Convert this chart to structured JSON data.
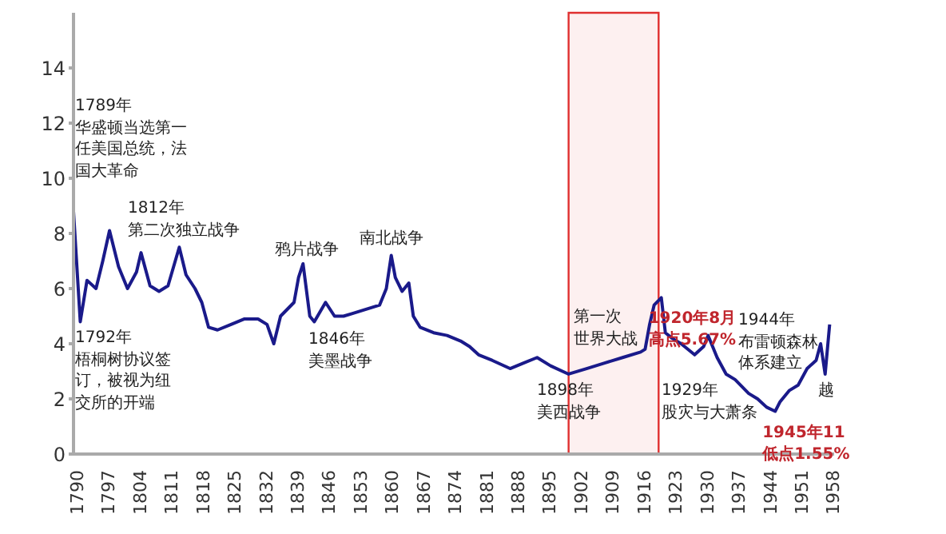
{
  "chart_data": {
    "type": "line",
    "x": [
      1790,
      1791.5,
      1793,
      1795,
      1796.5,
      1798,
      1800,
      1802,
      1804,
      1805,
      1807,
      1809,
      1811,
      1813.5,
      1815,
      1817,
      1818.5,
      1820,
      1822,
      1825,
      1828,
      1831,
      1833,
      1834.5,
      1836,
      1839,
      1840,
      1841,
      1842.5,
      1843.5,
      1846,
      1848,
      1850,
      1852,
      1854,
      1856,
      1858,
      1859.5,
      1860.6,
      1861.5,
      1863,
      1864.5,
      1865.5,
      1867,
      1870,
      1873,
      1876,
      1878,
      1880,
      1883,
      1887,
      1890,
      1893,
      1896,
      1900,
      1904,
      1908,
      1912,
      1916,
      1917,
      1918,
      1919,
      1920.6,
      1921.5,
      1923,
      1925,
      1928,
      1930,
      1931,
      1933,
      1935,
      1937,
      1940,
      1942,
      1944,
      1945.9,
      1947,
      1949,
      1951,
      1953,
      1955,
      1956,
      1957,
      1958
    ],
    "series": [
      {
        "color": "#1a1a8a",
        "values": [
          8.8,
          4.8,
          6.3,
          6.0,
          7.0,
          8.1,
          6.8,
          6.0,
          6.6,
          7.3,
          6.1,
          5.9,
          6.1,
          7.5,
          6.5,
          6.0,
          5.5,
          4.6,
          4.5,
          4.7,
          4.9,
          4.9,
          4.7,
          4.0,
          5.0,
          5.5,
          6.4,
          6.9,
          5.0,
          4.8,
          5.5,
          5.0,
          5.0,
          5.1,
          5.2,
          5.3,
          5.4,
          6.0,
          7.2,
          6.4,
          5.9,
          6.2,
          5.0,
          4.6,
          4.4,
          4.3,
          4.1,
          3.9,
          3.6,
          3.4,
          3.1,
          3.3,
          3.5,
          3.2,
          2.9,
          3.1,
          3.3,
          3.5,
          3.7,
          3.8,
          4.7,
          5.4,
          5.67,
          4.4,
          4.2,
          4.0,
          3.6,
          3.9,
          4.3,
          3.5,
          2.9,
          2.7,
          2.2,
          2.0,
          1.7,
          1.55,
          1.9,
          2.3,
          2.5,
          3.1,
          3.4,
          4.0,
          2.9,
          4.7
        ]
      }
    ],
    "xlim": [
      1790,
      1959
    ],
    "xticks": [
      1790,
      1797,
      1804,
      1811,
      1818,
      1825,
      1832,
      1839,
      1846,
      1853,
      1860,
      1867,
      1874,
      1881,
      1888,
      1895,
      1902,
      1909,
      1916,
      1923,
      1930,
      1937,
      1944,
      1951,
      1958
    ],
    "ylim": [
      0,
      16
    ],
    "yticks": [
      0,
      2,
      4,
      6,
      8,
      10,
      12,
      14
    ],
    "grid": false,
    "legend": false,
    "bands": [
      {
        "axis": "x",
        "from": 1900,
        "to": 1920,
        "color": "#e03030"
      }
    ],
    "annotations": [
      "1789年华盛顿当选第一任美国总统，法国大革命",
      "1812年第二次独立战争",
      "鸦片战争",
      "南北战争",
      "1792年梧桐树协议签订，被视为纽交所的开端",
      "1846年美墨战争",
      "1898年美西战争",
      "第一次世界大战",
      {
        "text": "1920年8月高点5.67%",
        "x": 1920.6,
        "y": 5.67
      },
      "1929年股灾与大萧条",
      "1944年布雷顿森林体系建立",
      "越",
      {
        "text": "1945年11低点1.55%",
        "x": 1945.9,
        "y": 1.55
      }
    ]
  }
}
